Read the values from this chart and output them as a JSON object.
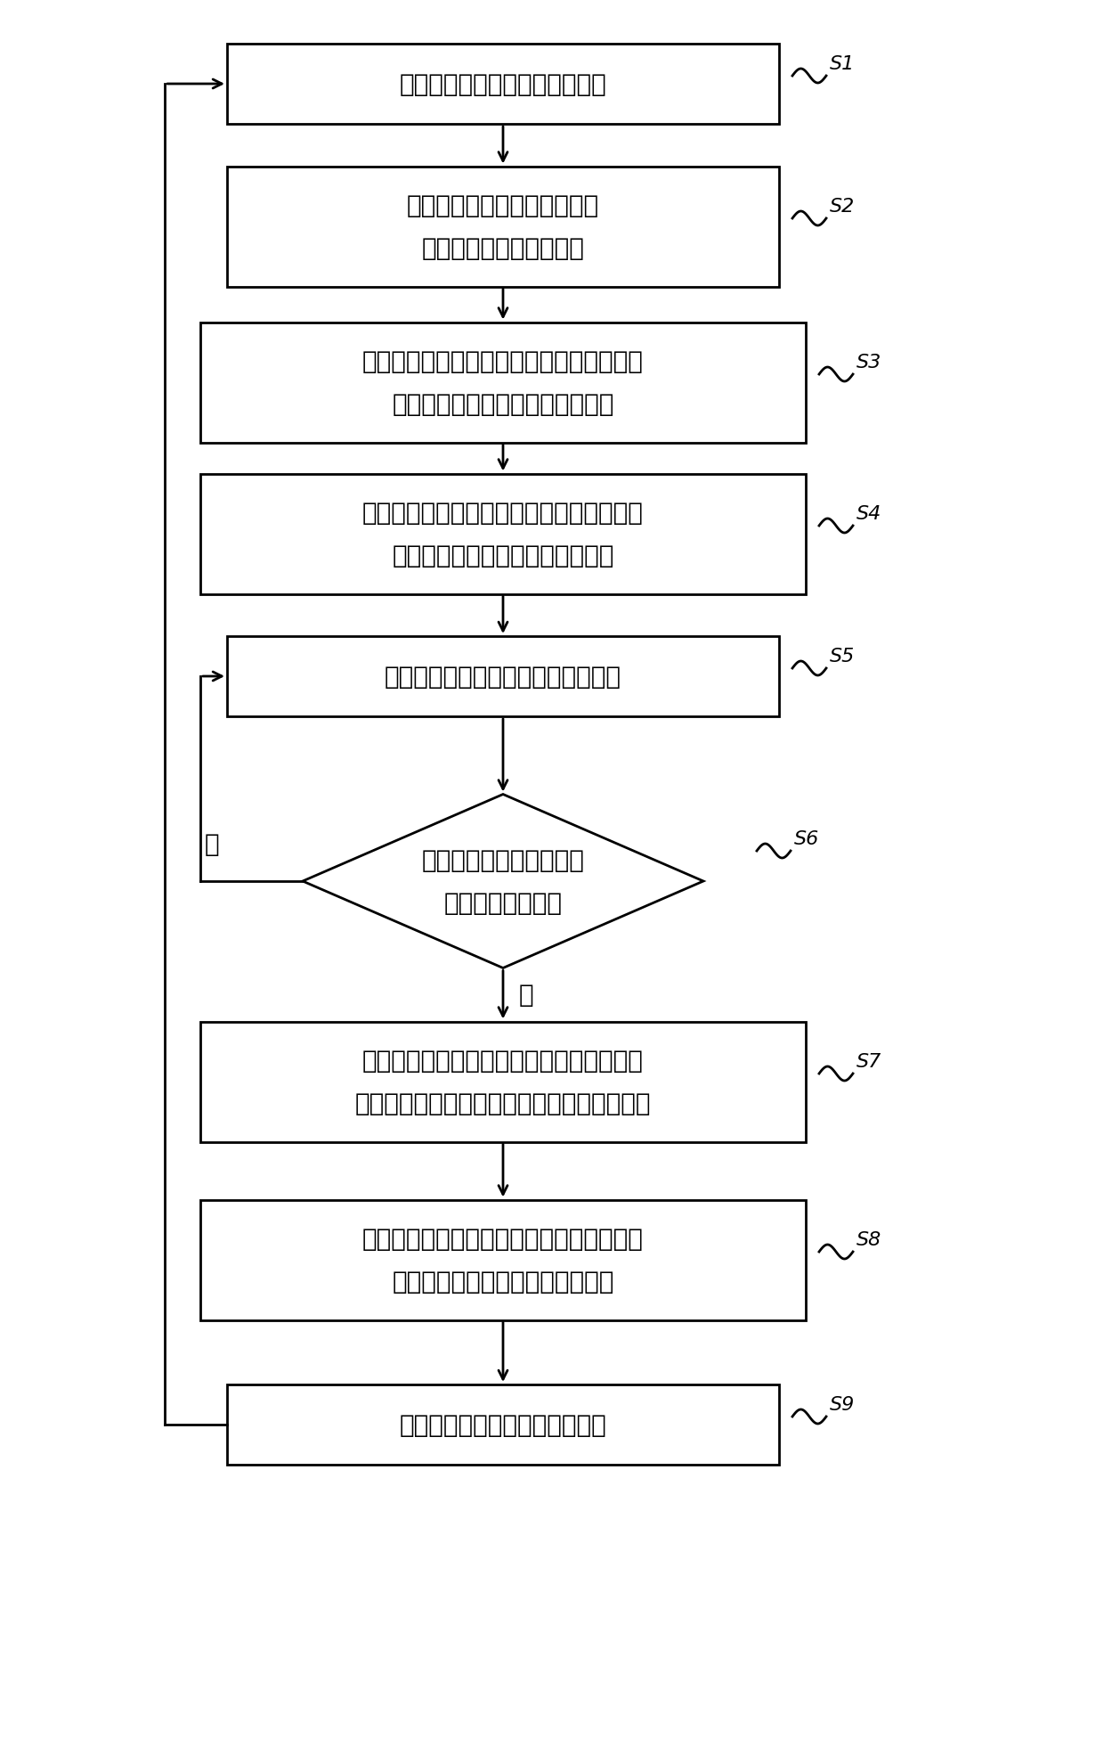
{
  "bg_color": "#ffffff",
  "line_color": "#000000",
  "text_color": "#000000",
  "font_size_large": 18,
  "font_size_medium": 16,
  "font_size_small": 14,
  "steps": [
    {
      "id": "S1",
      "type": "rect",
      "line1": "所述逻辑电路系统完成工作任务",
      "line2": ""
    },
    {
      "id": "S2",
      "type": "rect",
      "line1": "所述逻辑电路系统通过低功耗",
      "line2": "控制模块设置系统唤醒源"
    },
    {
      "id": "S3",
      "type": "rect",
      "line1": "所述低功耗控制模块通过控制时钟管理模块",
      "line2": "停止输出时钟信号至逻辑电路系统"
    },
    {
      "id": "S4",
      "type": "rect",
      "line1": "所述低功耗控制模块通过控制电源管理模块",
      "line2": "降低逻辑电路系统供电端的电压值"
    },
    {
      "id": "S5",
      "type": "rect",
      "line1": "所述逻辑电路系统进入空闲等待状态",
      "line2": ""
    },
    {
      "id": "S6",
      "type": "diamond",
      "line1": "判断所述低功耗控制模块",
      "line2": "是否接收到唤醒源"
    },
    {
      "id": "S7",
      "type": "rect",
      "line1": "所述低功耗控制模块通过控制电源管理模块",
      "line2": "恢复逻辑电路系统供电端正常工作时的电压值"
    },
    {
      "id": "S8",
      "type": "rect",
      "line1": "所述低功耗控制模块通过控制时钟管理模块",
      "line2": "恢复输出时钟信号至逻辑电路系统"
    },
    {
      "id": "S9",
      "type": "rect",
      "line1": "所述逻辑电路系统进入工作状态",
      "line2": ""
    }
  ],
  "yes_label": "是",
  "no_label": "否"
}
